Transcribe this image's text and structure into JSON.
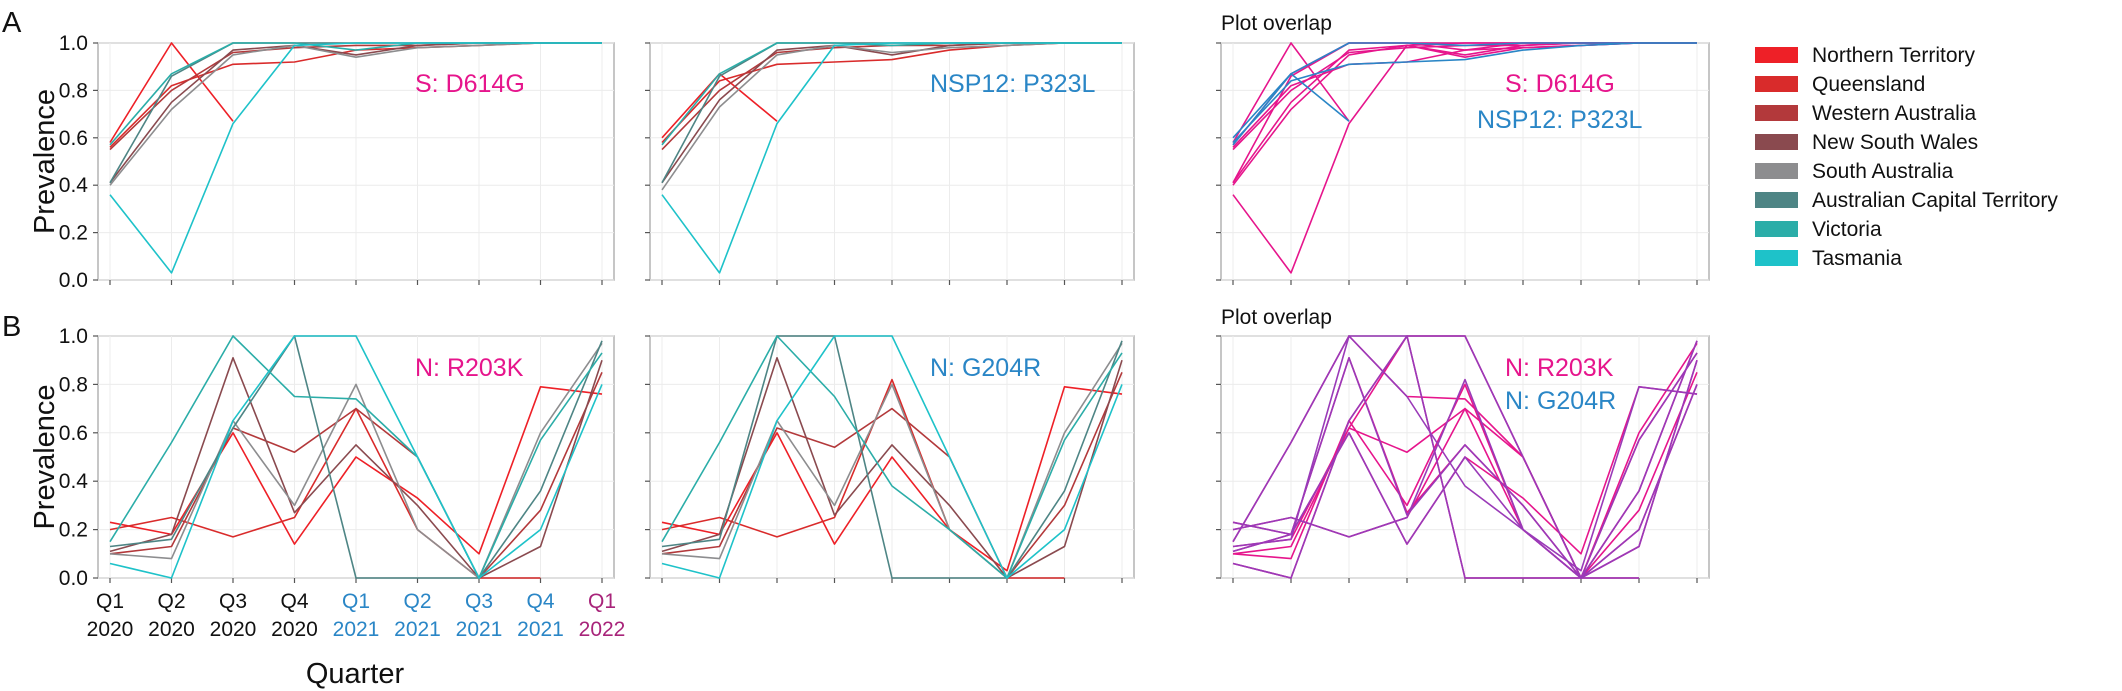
{
  "figure": {
    "panel_a_letter": "A",
    "panel_b_letter": "B",
    "overlap_title": "Plot overlap",
    "y_axis_title": "Prevalence",
    "x_axis_title": "Quarter",
    "colors": {
      "mutation_1": "#e6158c",
      "mutation_2": "#2a86c6",
      "overlap_2": "#9a3ab8",
      "year_2020": "#111111",
      "year_2021": "#2a86c6",
      "year_2022": "#a8247a"
    }
  },
  "x_ticks": [
    {
      "q": "Q1",
      "y": "2020"
    },
    {
      "q": "Q2",
      "y": "2020"
    },
    {
      "q": "Q3",
      "y": "2020"
    },
    {
      "q": "Q4",
      "y": "2020"
    },
    {
      "q": "Q1",
      "y": "2021"
    },
    {
      "q": "Q2",
      "y": "2021"
    },
    {
      "q": "Q3",
      "y": "2021"
    },
    {
      "q": "Q4",
      "y": "2021"
    },
    {
      "q": "Q1",
      "y": "2022"
    }
  ],
  "y_ticks": [
    "0.0",
    "0.2",
    "0.4",
    "0.6",
    "0.8",
    "1.0"
  ],
  "legend": [
    {
      "label": "Northern Territory",
      "color": "#ee2027"
    },
    {
      "label": "Queensland",
      "color": "#d92b2b"
    },
    {
      "label": "Western Australia",
      "color": "#b3393b"
    },
    {
      "label": "New South Wales",
      "color": "#8a4a4f"
    },
    {
      "label": "South Australia",
      "color": "#8d8d8f"
    },
    {
      "label": "Australian Capital Territory",
      "color": "#4e8585"
    },
    {
      "label": "Victoria",
      "color": "#2bada8"
    },
    {
      "label": "Tasmania",
      "color": "#1ec2c9"
    }
  ],
  "chart_data": [
    {
      "type": "line",
      "panel": "A",
      "mutation_label": "S: D614G",
      "x": [
        "Q1 2020",
        "Q2 2020",
        "Q3 2020",
        "Q4 2020",
        "Q1 2021",
        "Q2 2021",
        "Q3 2021",
        "Q4 2021",
        "Q1 2022"
      ],
      "ylim": [
        0,
        1
      ],
      "series": [
        {
          "values": [
            0.58,
            1.0,
            0.67,
            null,
            null,
            null,
            null,
            null,
            1.0
          ]
        },
        {
          "values": [
            0.56,
            0.82,
            0.91,
            0.92,
            0.97,
            0.98,
            0.99,
            1.0,
            1.0
          ]
        },
        {
          "values": [
            0.55,
            0.8,
            0.96,
            0.98,
            0.99,
            0.99,
            1.0,
            1.0,
            1.0
          ]
        },
        {
          "values": [
            0.41,
            0.75,
            0.97,
            0.99,
            0.95,
            0.99,
            1.0,
            1.0,
            1.0
          ]
        },
        {
          "values": [
            0.4,
            0.72,
            0.95,
            0.99,
            0.94,
            0.98,
            0.99,
            1.0,
            1.0
          ]
        },
        {
          "values": [
            0.41,
            0.86,
            1.0,
            1.0,
            1.0,
            1.0,
            1.0,
            1.0,
            1.0
          ]
        },
        {
          "values": [
            0.57,
            0.87,
            1.0,
            1.0,
            0.97,
            1.0,
            1.0,
            1.0,
            1.0
          ]
        },
        {
          "values": [
            0.36,
            0.03,
            0.66,
            0.99,
            1.0,
            1.0,
            1.0,
            1.0,
            1.0
          ]
        }
      ]
    },
    {
      "type": "line",
      "panel": "A",
      "mutation_label": "NSP12: P323L",
      "x": [
        "Q1 2020",
        "Q2 2020",
        "Q3 2020",
        "Q4 2020",
        "Q1 2021",
        "Q2 2021",
        "Q3 2021",
        "Q4 2021",
        "Q1 2022"
      ],
      "ylim": [
        0,
        1
      ],
      "series": [
        {
          "values": [
            0.6,
            0.87,
            0.67,
            null,
            null,
            null,
            null,
            null,
            1.0
          ]
        },
        {
          "values": [
            0.58,
            0.84,
            0.91,
            0.92,
            0.93,
            0.97,
            0.99,
            1.0,
            1.0
          ]
        },
        {
          "values": [
            0.55,
            0.8,
            0.96,
            0.98,
            0.99,
            0.99,
            1.0,
            1.0,
            1.0
          ]
        },
        {
          "values": [
            0.41,
            0.76,
            0.97,
            0.99,
            0.95,
            0.99,
            1.0,
            1.0,
            1.0
          ]
        },
        {
          "values": [
            0.38,
            0.73,
            0.95,
            0.99,
            0.96,
            0.98,
            0.99,
            1.0,
            1.0
          ]
        },
        {
          "values": [
            0.41,
            0.86,
            1.0,
            1.0,
            1.0,
            1.0,
            1.0,
            1.0,
            1.0
          ]
        },
        {
          "values": [
            0.57,
            0.87,
            1.0,
            1.0,
            0.99,
            1.0,
            1.0,
            1.0,
            1.0
          ]
        },
        {
          "values": [
            0.36,
            0.03,
            0.66,
            0.99,
            1.0,
            1.0,
            1.0,
            1.0,
            1.0
          ]
        }
      ]
    },
    {
      "type": "line",
      "panel": "A",
      "mutation_label": "Plot overlap",
      "x": [
        "Q1 2020",
        "Q2 2020",
        "Q3 2020",
        "Q4 2020",
        "Q1 2021",
        "Q2 2021",
        "Q3 2021",
        "Q4 2021",
        "Q1 2022"
      ],
      "ylim": [
        0,
        1
      ],
      "series": [
        {
          "name": "S: D614G",
          "color": "#e6158c",
          "values": [
            0.58,
            1.0,
            0.67,
            null,
            null,
            null,
            null,
            null,
            1.0
          ]
        },
        {
          "name": "S: D614G",
          "color": "#e6158c",
          "values": [
            0.56,
            0.82,
            0.91,
            0.92,
            0.97,
            0.98,
            0.99,
            1.0,
            1.0
          ]
        },
        {
          "name": "S: D614G",
          "color": "#e6158c",
          "values": [
            0.55,
            0.8,
            0.96,
            0.98,
            0.99,
            0.99,
            1.0,
            1.0,
            1.0
          ]
        },
        {
          "name": "S: D614G",
          "color": "#e6158c",
          "values": [
            0.41,
            0.75,
            0.97,
            0.99,
            0.95,
            0.99,
            1.0,
            1.0,
            1.0
          ]
        },
        {
          "name": "S: D614G",
          "color": "#e6158c",
          "values": [
            0.4,
            0.72,
            0.95,
            0.99,
            0.94,
            0.98,
            0.99,
            1.0,
            1.0
          ]
        },
        {
          "name": "S: D614G",
          "color": "#e6158c",
          "values": [
            0.41,
            0.86,
            1.0,
            1.0,
            1.0,
            1.0,
            1.0,
            1.0,
            1.0
          ]
        },
        {
          "name": "S: D614G",
          "color": "#e6158c",
          "values": [
            0.57,
            0.87,
            1.0,
            1.0,
            0.97,
            1.0,
            1.0,
            1.0,
            1.0
          ]
        },
        {
          "name": "S: D614G",
          "color": "#e6158c",
          "values": [
            0.36,
            0.03,
            0.66,
            0.99,
            1.0,
            1.0,
            1.0,
            1.0,
            1.0
          ]
        },
        {
          "name": "NSP12: P323L",
          "color": "#2a86c6",
          "values": [
            0.6,
            0.87,
            0.67,
            null,
            null,
            null,
            null,
            null,
            1.0
          ]
        },
        {
          "name": "NSP12: P323L",
          "color": "#2a86c6",
          "values": [
            0.58,
            0.84,
            0.91,
            0.92,
            0.93,
            0.97,
            0.99,
            1.0,
            1.0
          ]
        },
        {
          "name": "NSP12: P323L",
          "color": "#2a86c6",
          "values": [
            0.57,
            0.87,
            1.0,
            1.0,
            0.99,
            1.0,
            1.0,
            1.0,
            1.0
          ]
        }
      ]
    },
    {
      "type": "line",
      "panel": "B",
      "mutation_label": "N: R203K",
      "x": [
        "Q1 2020",
        "Q2 2020",
        "Q3 2020",
        "Q4 2020",
        "Q1 2021",
        "Q2 2021",
        "Q3 2021",
        "Q4 2021",
        "Q1 2022"
      ],
      "ylim": [
        0,
        1
      ],
      "series": [
        {
          "values": [
            0.23,
            0.18,
            0.6,
            0.14,
            0.5,
            0.33,
            0.1,
            0.79,
            0.76
          ]
        },
        {
          "values": [
            0.2,
            0.25,
            0.17,
            0.25,
            0.7,
            0.2,
            0.0,
            0.0,
            null
          ]
        },
        {
          "values": [
            0.1,
            0.13,
            0.62,
            0.52,
            0.7,
            0.5,
            0.0,
            0.28,
            0.85
          ]
        },
        {
          "values": [
            0.11,
            0.18,
            0.91,
            0.27,
            0.55,
            0.3,
            0.0,
            0.13,
            0.9
          ]
        },
        {
          "values": [
            0.1,
            0.08,
            0.65,
            0.3,
            0.8,
            0.2,
            0.0,
            0.6,
            0.97
          ]
        },
        {
          "values": [
            0.13,
            0.16,
            0.62,
            1.0,
            0.0,
            0.0,
            0.0,
            0.36,
            0.98
          ]
        },
        {
          "values": [
            0.15,
            0.56,
            1.0,
            0.75,
            0.74,
            0.5,
            0.0,
            0.57,
            0.93
          ]
        },
        {
          "values": [
            0.06,
            0.0,
            0.65,
            1.0,
            1.0,
            0.5,
            0.0,
            0.2,
            0.8
          ]
        }
      ]
    },
    {
      "type": "line",
      "panel": "B",
      "mutation_label": "N: G204R",
      "x": [
        "Q1 2020",
        "Q2 2020",
        "Q3 2020",
        "Q4 2020",
        "Q1 2021",
        "Q2 2021",
        "Q3 2021",
        "Q4 2021",
        "Q1 2022"
      ],
      "ylim": [
        0,
        1
      ],
      "series": [
        {
          "values": [
            0.23,
            0.18,
            0.6,
            0.14,
            0.5,
            0.2,
            0.03,
            0.79,
            0.76
          ]
        },
        {
          "values": [
            0.2,
            0.25,
            0.17,
            0.25,
            0.82,
            0.2,
            0.0,
            0.0,
            null
          ]
        },
        {
          "values": [
            0.1,
            0.13,
            0.62,
            0.54,
            0.7,
            0.5,
            0.0,
            0.3,
            0.85
          ]
        },
        {
          "values": [
            0.11,
            0.18,
            0.91,
            0.26,
            0.55,
            0.3,
            0.0,
            0.13,
            0.9
          ]
        },
        {
          "values": [
            0.1,
            0.08,
            0.65,
            0.3,
            0.8,
            0.2,
            0.0,
            0.6,
            0.97
          ]
        },
        {
          "values": [
            0.13,
            0.16,
            1.0,
            1.0,
            0.0,
            0.0,
            0.0,
            0.36,
            0.98
          ]
        },
        {
          "values": [
            0.15,
            0.56,
            1.0,
            0.75,
            0.38,
            0.2,
            0.0,
            0.57,
            0.93
          ]
        },
        {
          "values": [
            0.06,
            0.0,
            0.65,
            1.0,
            1.0,
            0.5,
            0.0,
            0.2,
            0.8
          ]
        }
      ]
    },
    {
      "type": "line",
      "panel": "B",
      "mutation_label": "Plot overlap",
      "x": [
        "Q1 2020",
        "Q2 2020",
        "Q3 2020",
        "Q4 2020",
        "Q1 2021",
        "Q2 2021",
        "Q3 2021",
        "Q4 2021",
        "Q1 2022"
      ],
      "ylim": [
        0,
        1
      ],
      "series": [
        {
          "name": "N: R203K",
          "color": "#e6158c",
          "values": [
            0.23,
            0.18,
            0.6,
            0.14,
            0.5,
            0.33,
            0.1,
            0.79,
            0.76
          ]
        },
        {
          "name": "N: R203K",
          "color": "#e6158c",
          "values": [
            0.2,
            0.25,
            0.17,
            0.25,
            0.7,
            0.2,
            0.0,
            0.0,
            null
          ]
        },
        {
          "name": "N: R203K",
          "color": "#e6158c",
          "values": [
            0.1,
            0.13,
            0.62,
            0.52,
            0.7,
            0.5,
            0.0,
            0.28,
            0.85
          ]
        },
        {
          "name": "N: R203K",
          "color": "#e6158c",
          "values": [
            0.11,
            0.18,
            0.91,
            0.27,
            0.55,
            0.3,
            0.0,
            0.13,
            0.9
          ]
        },
        {
          "name": "N: R203K",
          "color": "#e6158c",
          "values": [
            0.1,
            0.08,
            0.65,
            0.3,
            0.8,
            0.2,
            0.0,
            0.6,
            0.97
          ]
        },
        {
          "name": "N: R203K",
          "color": "#e6158c",
          "values": [
            0.13,
            0.16,
            0.62,
            1.0,
            0.0,
            0.0,
            0.0,
            0.36,
            0.98
          ]
        },
        {
          "name": "N: R203K",
          "color": "#e6158c",
          "values": [
            0.15,
            0.56,
            1.0,
            0.75,
            0.74,
            0.5,
            0.0,
            0.57,
            0.93
          ]
        },
        {
          "name": "N: R203K",
          "color": "#e6158c",
          "values": [
            0.06,
            0.0,
            0.65,
            1.0,
            1.0,
            0.5,
            0.0,
            0.2,
            0.8
          ]
        },
        {
          "name": "N: G204R",
          "color": "#9a3ab8",
          "values": [
            0.23,
            0.18,
            0.6,
            0.14,
            0.5,
            0.2,
            0.03,
            0.79,
            0.76
          ]
        },
        {
          "name": "N: G204R",
          "color": "#9a3ab8",
          "values": [
            0.2,
            0.25,
            0.17,
            0.25,
            0.82,
            0.2,
            0.0,
            0.0,
            null
          ]
        },
        {
          "name": "N: G204R",
          "color": "#9a3ab8",
          "values": [
            0.11,
            0.18,
            0.91,
            0.26,
            0.55,
            0.3,
            0.0,
            0.13,
            0.9
          ]
        },
        {
          "name": "N: G204R",
          "color": "#9a3ab8",
          "values": [
            0.13,
            0.16,
            1.0,
            1.0,
            0.0,
            0.0,
            0.0,
            0.36,
            0.98
          ]
        },
        {
          "name": "N: G204R",
          "color": "#9a3ab8",
          "values": [
            0.15,
            0.56,
            1.0,
            0.75,
            0.38,
            0.2,
            0.0,
            0.57,
            0.93
          ]
        },
        {
          "name": "N: G204R",
          "color": "#9a3ab8",
          "values": [
            0.06,
            0.0,
            0.65,
            1.0,
            1.0,
            0.5,
            0.0,
            0.2,
            0.8
          ]
        }
      ]
    }
  ]
}
